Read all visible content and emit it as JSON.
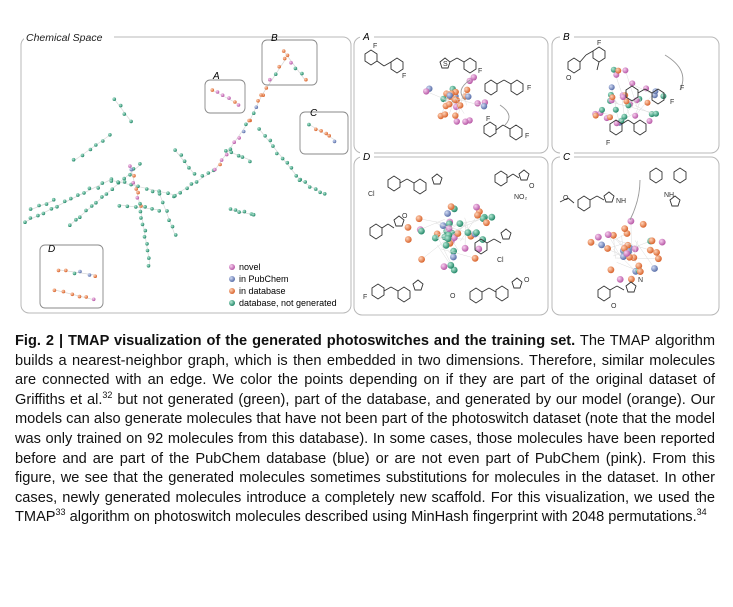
{
  "figure": {
    "main_title": "Chemical Space",
    "labels": {
      "A": "A",
      "B": "B",
      "C": "C",
      "D": "D"
    },
    "legend": [
      {
        "label": "novel",
        "color": "#d77fc9"
      },
      {
        "label": "in PubChem",
        "color": "#7a8fc0"
      },
      {
        "label": "in database",
        "color": "#e67e50"
      },
      {
        "label": "database, not generated",
        "color": "#3aa582"
      }
    ],
    "substituents": {
      "F": "F",
      "O": "O",
      "Cl": "Cl",
      "NO2": "NO₂",
      "NH": "NH",
      "N": "N",
      "S": "S"
    }
  },
  "caption": {
    "head": "Fig. 2 | TMAP visualization of the generated photoswitches and the training set.",
    "p1": " The TMAP algorithm builds a nearest-neighbor graph, which is then embedded in two dimensions. Therefore, similar molecules are connected with an edge. We color the points depending on if they are part of the original dataset of Griffiths et al.",
    "ref1": "32",
    "p2": " but not generated (green), part of the database, and generated by our model (orange). Our models can also generate molecules that have not been part of the photoswitch dataset (note that the model was only trained on 92 molecules from this database). In some cases, those molecules have been reported before and are part of the PubChem database (blue) or are not even part of PubChem (pink). From this figure, we see that the generated molecules sometimes substitutions for molecules in the dataset. In other cases, newly generated molecules introduce a completely new scaffold. For this visualization, we used the TMAP",
    "ref2": "33",
    "p3": " algorithm on photoswitch molecules described using MinHash fingerprint with 2048 permutations.",
    "ref3": "34"
  }
}
